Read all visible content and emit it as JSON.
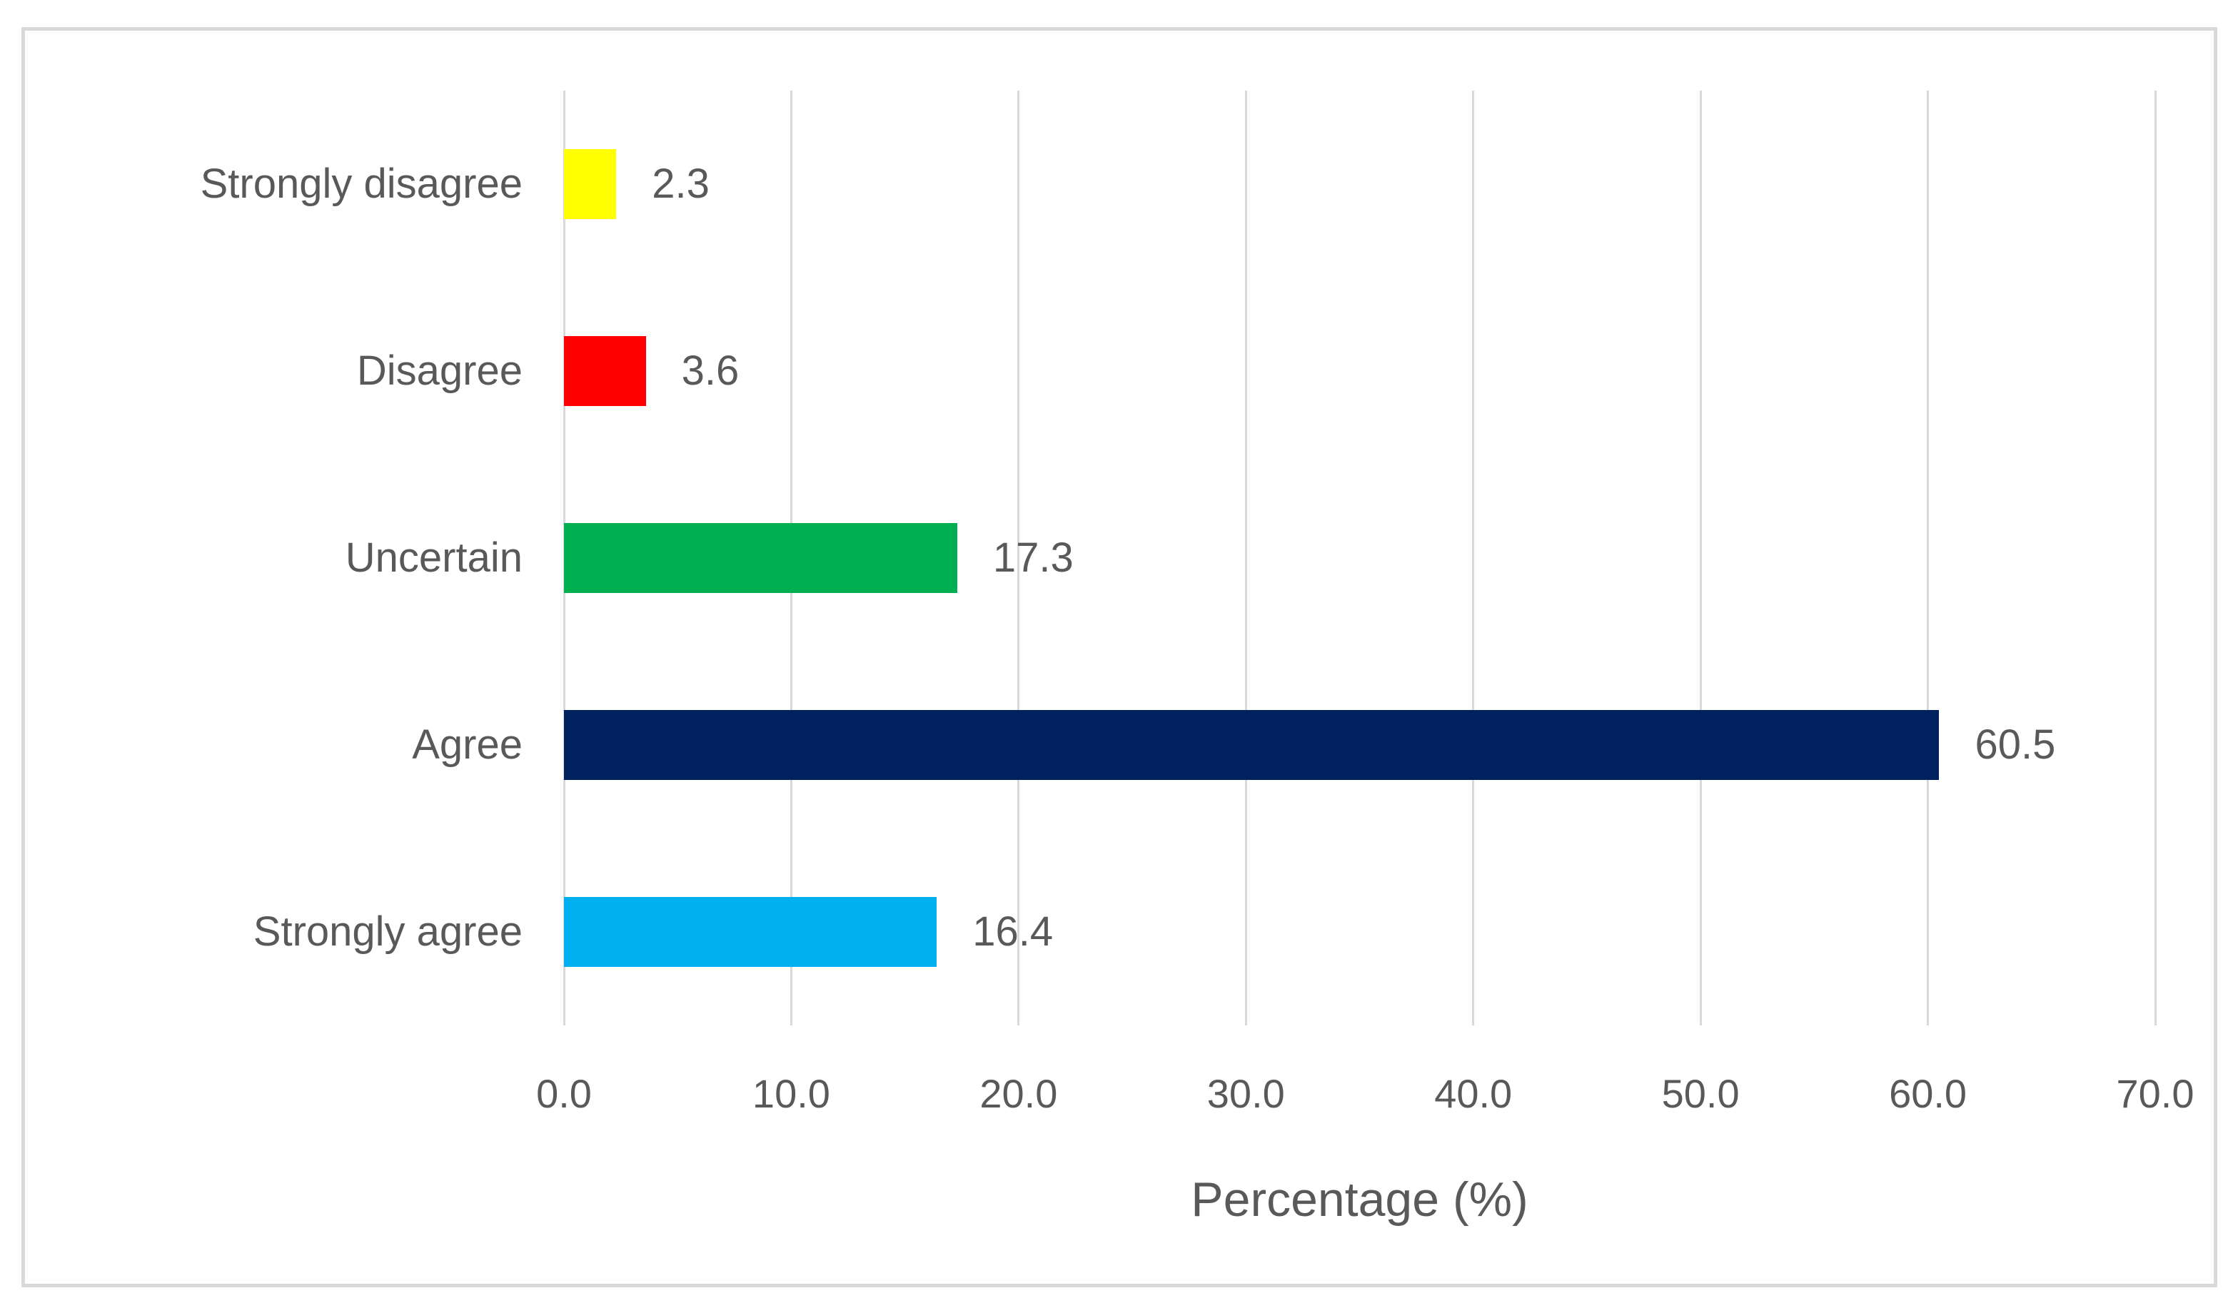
{
  "chart_data": {
    "type": "bar",
    "orientation": "horizontal",
    "title": "",
    "categories": [
      "Strongly disagree",
      "Disagree",
      "Uncertain",
      "Agree",
      "Strongly agree"
    ],
    "values": [
      2.3,
      3.6,
      17.3,
      60.5,
      16.4
    ],
    "value_labels": [
      "2.3",
      "3.6",
      "17.3",
      "60.5",
      "16.4"
    ],
    "bar_colors": [
      "#FFFF00",
      "#FF0000",
      "#00B050",
      "#002060",
      "#00B0F0"
    ],
    "xlabel": "Percentage (%)",
    "ylabel": "",
    "xlim": [
      0,
      70
    ],
    "x_ticks": [
      0,
      10,
      20,
      30,
      40,
      50,
      60,
      70
    ],
    "x_tick_labels": [
      "0.0",
      "10.0",
      "20.0",
      "30.0",
      "40.0",
      "50.0",
      "60.0",
      "70.0"
    ],
    "grid": "vertical",
    "legend": "none",
    "data_labels": "outside-end",
    "colors": {
      "gridline": "#D9D9D9",
      "frame_border": "#D9D9D9",
      "text": "#595959",
      "background": "#FFFFFF"
    }
  }
}
